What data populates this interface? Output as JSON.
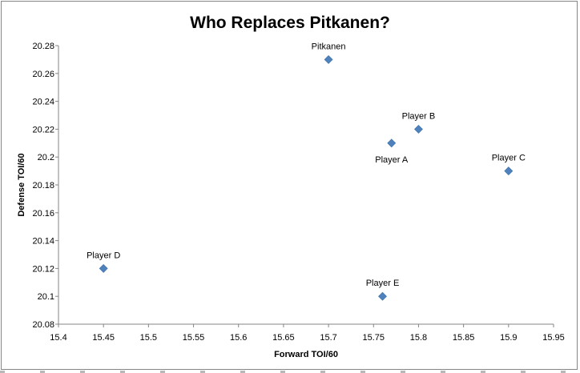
{
  "chart_data": {
    "type": "scatter",
    "title": "Who Replaces Pitkanen?",
    "xlabel": "Forward TOI/60",
    "ylabel": "Defense TOI/60",
    "xlim": [
      15.4,
      15.95
    ],
    "ylim": [
      20.08,
      20.28
    ],
    "x_ticks": [
      "15.4",
      "15.45",
      "15.5",
      "15.55",
      "15.6",
      "15.65",
      "15.7",
      "15.75",
      "15.8",
      "15.85",
      "15.9",
      "15.95"
    ],
    "y_ticks": [
      "20.08",
      "20.1",
      "20.12",
      "20.14",
      "20.16",
      "20.18",
      "20.2",
      "20.22",
      "20.24",
      "20.26",
      "20.28"
    ],
    "grid": false,
    "marker_color": "#4F81BD",
    "marker": "diamond",
    "points": [
      {
        "label": "Pitkanen",
        "x": 15.7,
        "y": 20.27,
        "label_pos": "above"
      },
      {
        "label": "Player A",
        "x": 15.77,
        "y": 20.21,
        "label_pos": "below"
      },
      {
        "label": "Player B",
        "x": 15.8,
        "y": 20.22,
        "label_pos": "above"
      },
      {
        "label": "Player C",
        "x": 15.9,
        "y": 20.19,
        "label_pos": "above"
      },
      {
        "label": "Player D",
        "x": 15.45,
        "y": 20.12,
        "label_pos": "above"
      },
      {
        "label": "Player E",
        "x": 15.76,
        "y": 20.1,
        "label_pos": "above"
      }
    ]
  }
}
